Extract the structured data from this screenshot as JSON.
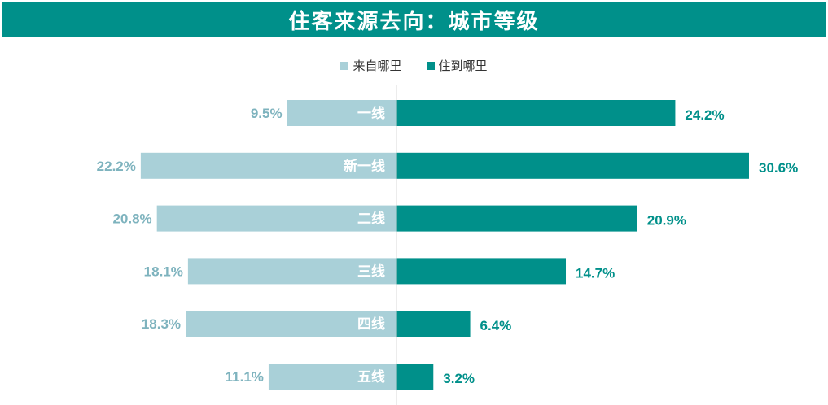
{
  "chart_data": {
    "type": "bar",
    "title": "住客来源去向：城市等级",
    "categories": [
      "一线",
      "新一线",
      "二线",
      "三线",
      "四线",
      "五线"
    ],
    "series": [
      {
        "name": "来自哪里",
        "values": [
          9.5,
          22.2,
          20.8,
          18.1,
          18.3,
          11.1
        ],
        "labels": [
          "9.5%",
          "22.2%",
          "20.8%",
          "18.1%",
          "18.3%",
          "11.1%"
        ],
        "color": "#a9d0d8",
        "direction": "left"
      },
      {
        "name": "住到哪里",
        "values": [
          24.2,
          30.6,
          20.9,
          14.7,
          6.4,
          3.2
        ],
        "labels": [
          "24.2%",
          "30.6%",
          "20.9%",
          "14.7%",
          "6.4%",
          "3.2%"
        ],
        "color": "#00908a",
        "direction": "right"
      }
    ],
    "value_unit": "%",
    "legend_position": "top",
    "grid": false
  },
  "colors": {
    "title_bg": "#00908a",
    "left_label": "#7eb3be",
    "right_label": "#00908a",
    "category_label": "#ffffff"
  }
}
